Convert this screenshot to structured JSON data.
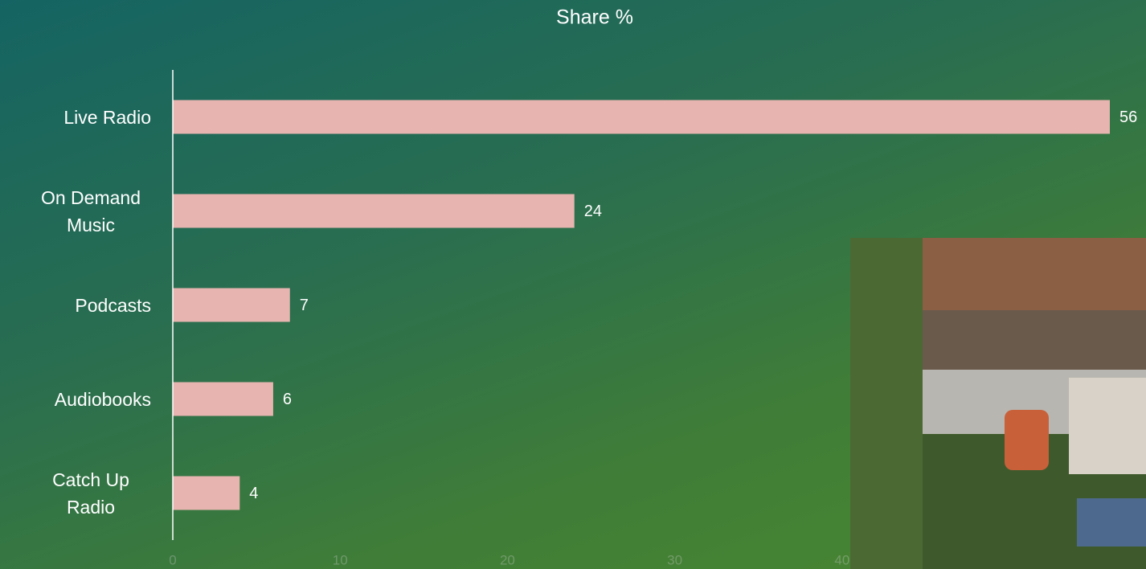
{
  "chart_data": {
    "type": "bar",
    "orientation": "horizontal",
    "title": "Share %",
    "categories": [
      "Live Radio",
      "On Demand Music",
      "Podcasts",
      "Audiobooks",
      "Catch Up Radio"
    ],
    "values": [
      56,
      24,
      7,
      6,
      4
    ],
    "color": "#e8b4b0",
    "xlim": [
      0,
      56
    ],
    "xticks": [
      0,
      10,
      20,
      30,
      40
    ],
    "grid": false
  }
}
